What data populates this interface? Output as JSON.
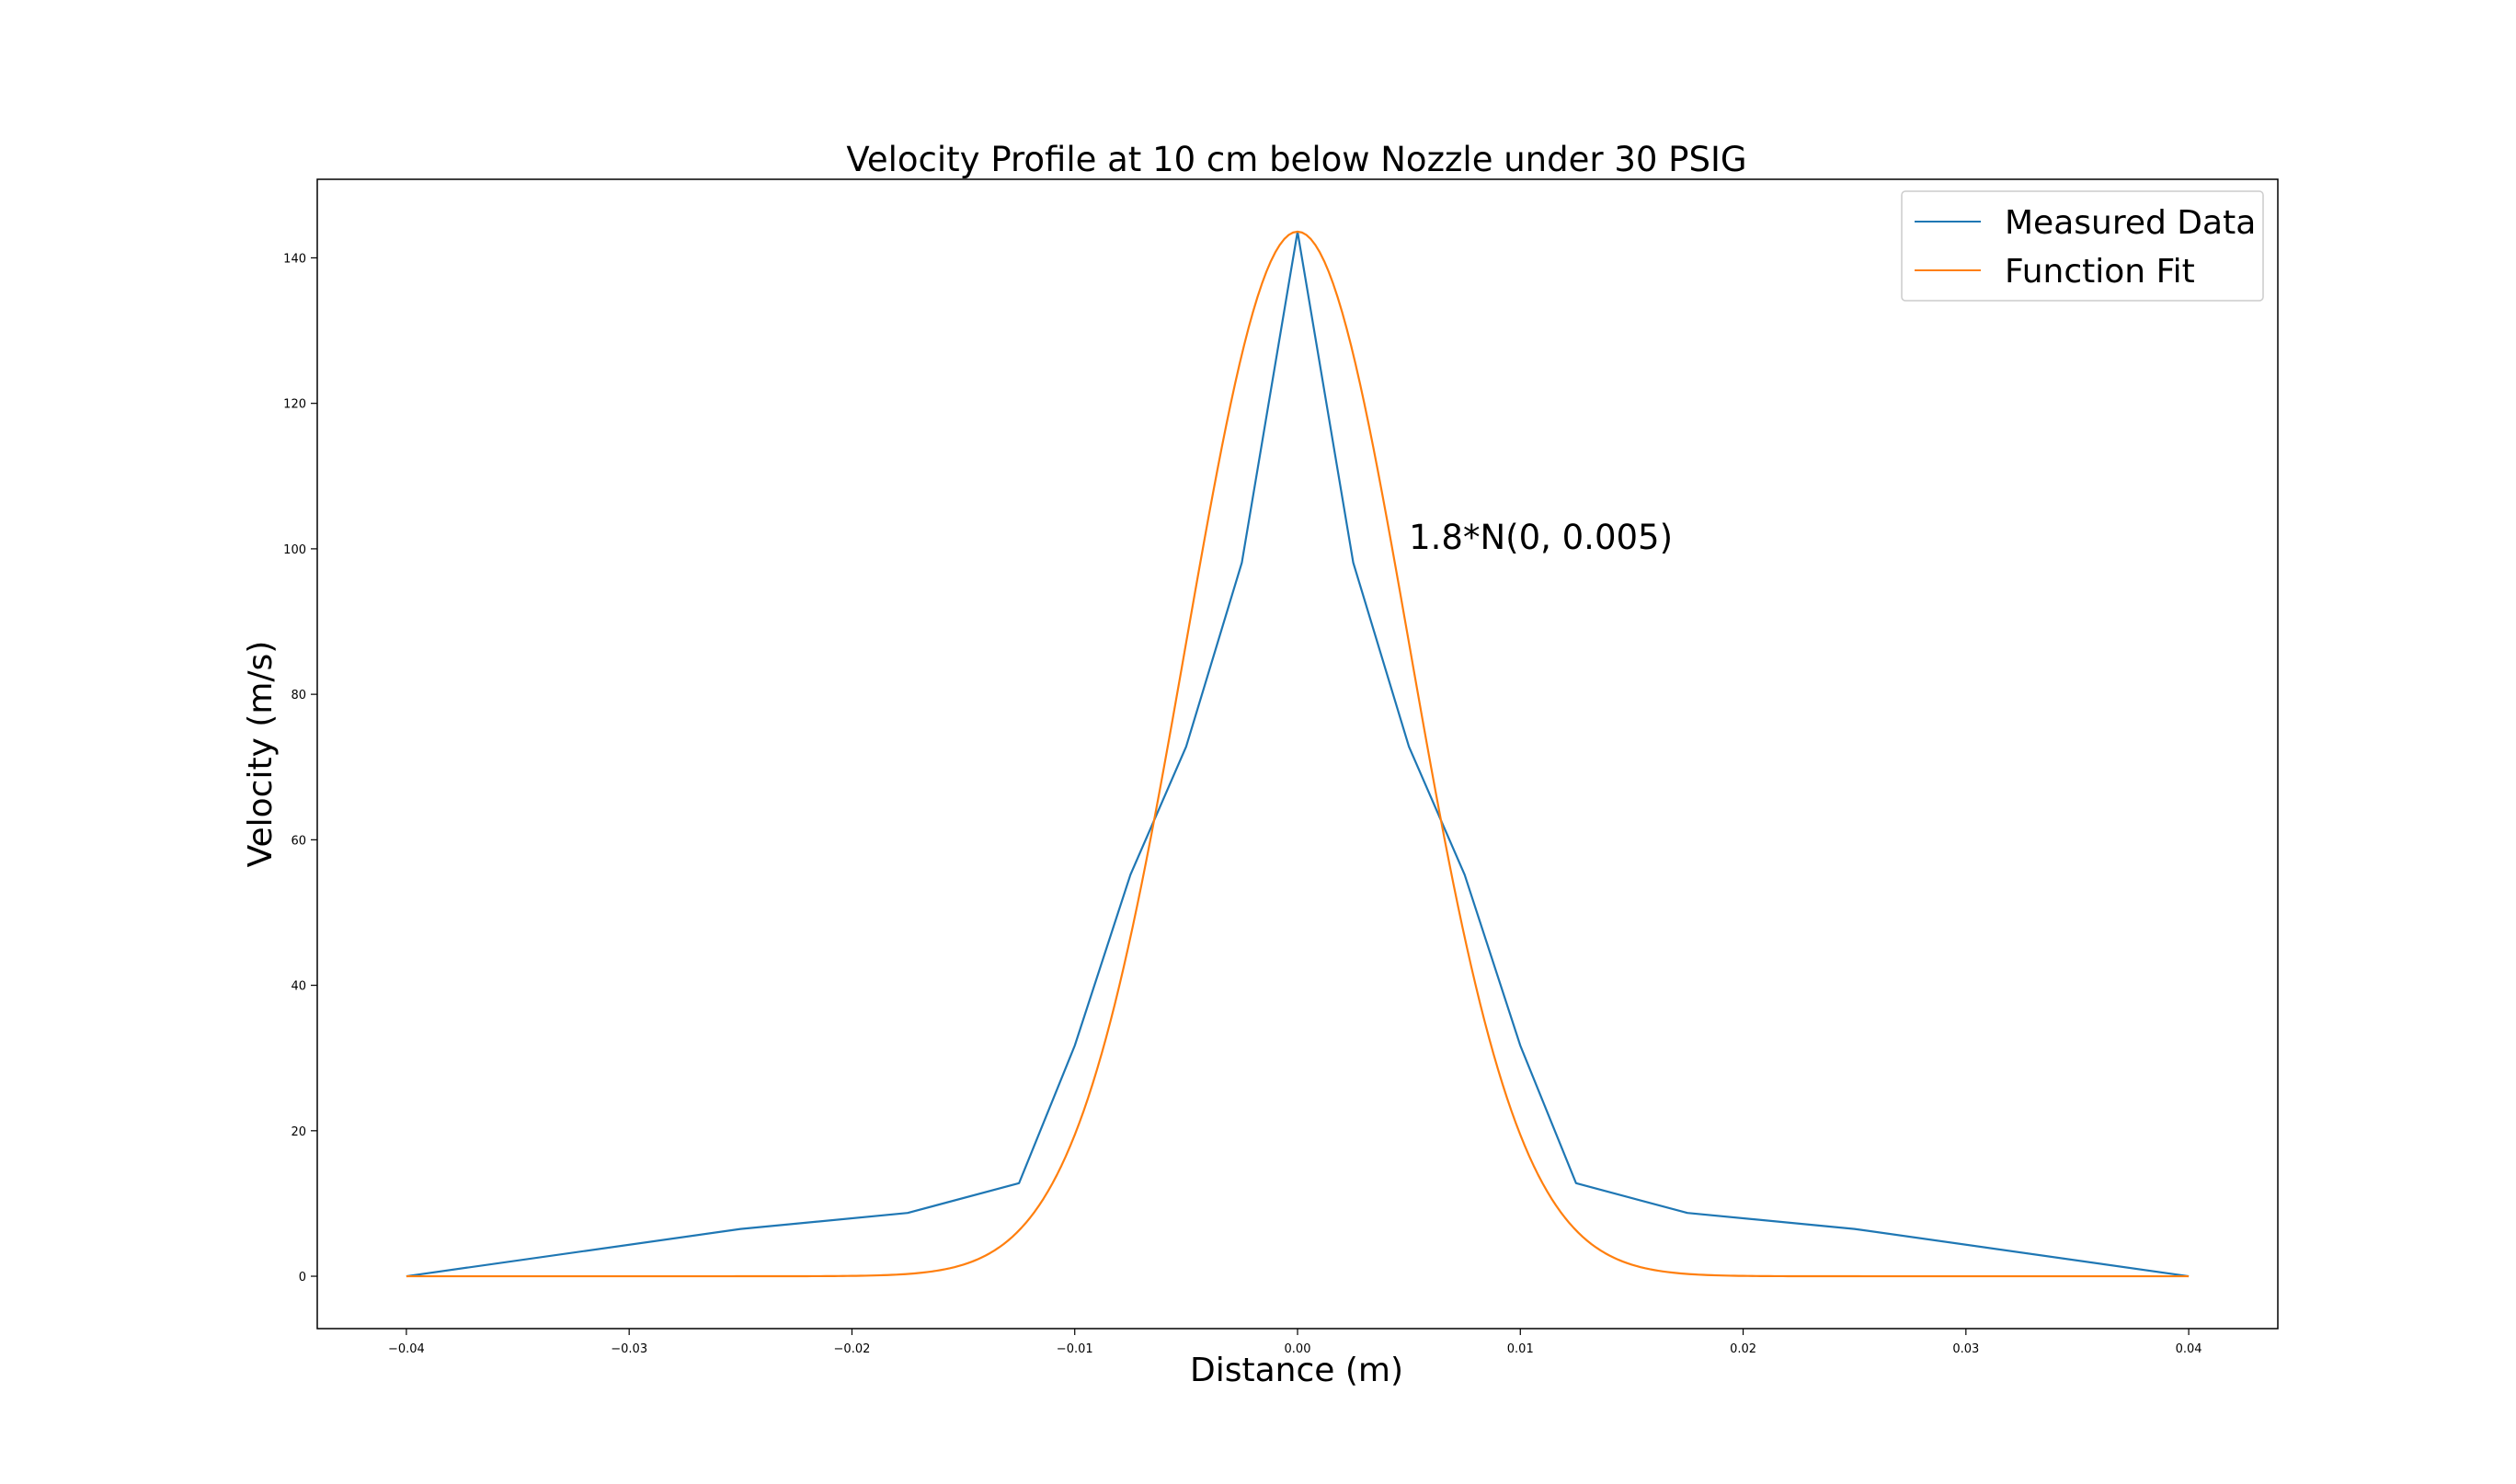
{
  "chart_data": {
    "type": "line",
    "title": "Velocity Profile at 10 cm below Nozzle under 30 PSIG",
    "xlabel": "Distance (m)",
    "ylabel": "Velocity (m/s)",
    "xlim": [
      -0.044,
      0.044
    ],
    "ylim": [
      -7.2,
      150.8
    ],
    "xticks": [
      -0.04,
      -0.03,
      -0.02,
      -0.01,
      0.0,
      0.01,
      0.02,
      0.03,
      0.04
    ],
    "xtick_labels": [
      "−0.04",
      "−0.03",
      "−0.02",
      "−0.01",
      "0.00",
      "0.01",
      "0.02",
      "0.03",
      "0.04"
    ],
    "yticks": [
      0,
      20,
      40,
      60,
      80,
      100,
      120,
      140
    ],
    "ytick_labels": [
      "0",
      "20",
      "40",
      "60",
      "80",
      "100",
      "120",
      "140"
    ],
    "grid": false,
    "legend_position": "top-right",
    "annotation": {
      "text": "1.8*N(0, 0.005)",
      "x": 0.005,
      "y": 100
    },
    "series": [
      {
        "name": "Measured Data",
        "color": "#1f77b4",
        "x": [
          -0.04,
          -0.025,
          -0.0175,
          -0.0125,
          -0.01,
          -0.0075,
          -0.005,
          -0.0025,
          0.0,
          0.0025,
          0.005,
          0.0075,
          0.01,
          0.0125,
          0.0175,
          0.025,
          0.04
        ],
        "y": [
          0,
          6.5,
          8.7,
          12.8,
          31.7,
          55.2,
          72.8,
          98.1,
          143.6,
          98.1,
          72.8,
          55.2,
          31.7,
          12.8,
          8.7,
          6.5,
          0
        ]
      },
      {
        "name": "Function Fit",
        "color": "#ff7f0e",
        "function": "gaussian",
        "amplitude": 1.8,
        "mean": 0.0,
        "sigma": 0.005,
        "peak": 143.6,
        "x_range": [
          -0.04,
          0.04
        ]
      }
    ]
  }
}
